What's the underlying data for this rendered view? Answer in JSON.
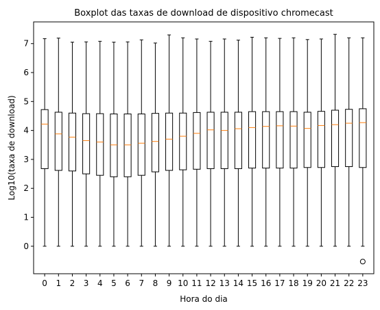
{
  "chart_data": {
    "type": "box",
    "title": "Boxplot das taxas de download de dispositivo chromecast",
    "xlabel": "Hora do dia",
    "ylabel": "Log10(taxa de download)",
    "categories": [
      "0",
      "1",
      "2",
      "3",
      "4",
      "5",
      "6",
      "7",
      "8",
      "9",
      "10",
      "11",
      "12",
      "13",
      "14",
      "15",
      "16",
      "17",
      "18",
      "19",
      "20",
      "21",
      "22",
      "23"
    ],
    "ylim": [
      -0.95,
      7.75
    ],
    "yticks": [
      "0",
      "1",
      "2",
      "3",
      "4",
      "5",
      "6",
      "7"
    ],
    "grid": false,
    "box_color": "#000000",
    "median_color": "#ff7f0e",
    "boxes": [
      {
        "whislo": 0,
        "q1": 2.68,
        "med": 4.22,
        "q3": 4.72,
        "whishi": 7.17
      },
      {
        "whislo": 0,
        "q1": 2.62,
        "med": 3.88,
        "q3": 4.63,
        "whishi": 7.19
      },
      {
        "whislo": 0,
        "q1": 2.6,
        "med": 3.77,
        "q3": 4.6,
        "whishi": 7.05
      },
      {
        "whislo": 0,
        "q1": 2.5,
        "med": 3.65,
        "q3": 4.58,
        "whishi": 7.06
      },
      {
        "whislo": 0,
        "q1": 2.45,
        "med": 3.6,
        "q3": 4.58,
        "whishi": 7.08
      },
      {
        "whislo": 0,
        "q1": 2.4,
        "med": 3.5,
        "q3": 4.57,
        "whishi": 7.05
      },
      {
        "whislo": 0,
        "q1": 2.4,
        "med": 3.5,
        "q3": 4.57,
        "whishi": 7.06
      },
      {
        "whislo": 0,
        "q1": 2.45,
        "med": 3.56,
        "q3": 4.57,
        "whishi": 7.13
      },
      {
        "whislo": 0,
        "q1": 2.57,
        "med": 3.62,
        "q3": 4.59,
        "whishi": 7.02
      },
      {
        "whislo": 0,
        "q1": 2.62,
        "med": 3.7,
        "q3": 4.6,
        "whishi": 7.3
      },
      {
        "whislo": 0,
        "q1": 2.64,
        "med": 3.8,
        "q3": 4.6,
        "whishi": 7.2
      },
      {
        "whislo": 0,
        "q1": 2.66,
        "med": 3.9,
        "q3": 4.62,
        "whishi": 7.16
      },
      {
        "whislo": 0,
        "q1": 2.68,
        "med": 4.02,
        "q3": 4.63,
        "whishi": 7.08
      },
      {
        "whislo": 0,
        "q1": 2.68,
        "med": 4.0,
        "q3": 4.63,
        "whishi": 7.16
      },
      {
        "whislo": 0,
        "q1": 2.68,
        "med": 4.06,
        "q3": 4.63,
        "whishi": 7.12
      },
      {
        "whislo": 0,
        "q1": 2.7,
        "med": 4.1,
        "q3": 4.65,
        "whishi": 7.22
      },
      {
        "whislo": 0,
        "q1": 2.7,
        "med": 4.14,
        "q3": 4.65,
        "whishi": 7.2
      },
      {
        "whislo": 0,
        "q1": 2.7,
        "med": 4.16,
        "q3": 4.65,
        "whishi": 7.18
      },
      {
        "whislo": 0,
        "q1": 2.7,
        "med": 4.15,
        "q3": 4.65,
        "whishi": 7.2
      },
      {
        "whislo": 0,
        "q1": 2.72,
        "med": 4.07,
        "q3": 4.63,
        "whishi": 7.14
      },
      {
        "whislo": 0,
        "q1": 2.72,
        "med": 4.17,
        "q3": 4.66,
        "whishi": 7.16
      },
      {
        "whislo": 0,
        "q1": 2.75,
        "med": 4.2,
        "q3": 4.7,
        "whishi": 7.32
      },
      {
        "whislo": 0,
        "q1": 2.75,
        "med": 4.25,
        "q3": 4.73,
        "whishi": 7.2
      },
      {
        "whislo": 0,
        "q1": 2.72,
        "med": 4.27,
        "q3": 4.75,
        "whishi": 7.2,
        "fliers": [
          -0.53
        ]
      }
    ]
  }
}
